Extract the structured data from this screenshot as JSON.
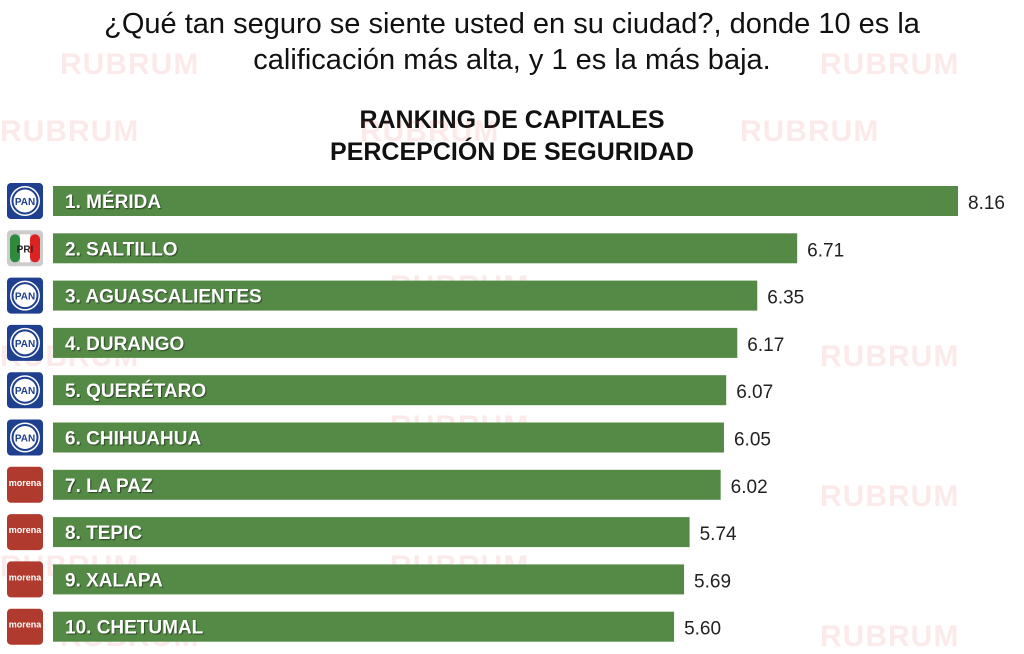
{
  "question": {
    "line1": "¿Qué tan seguro se siente usted en su ciudad?, donde 10 es la",
    "line2": "calificación más alta, y  1 es la más baja."
  },
  "watermark": "RUBRUM",
  "chart_data": {
    "type": "bar",
    "orientation": "horizontal",
    "title": "RANKING DE CAPITALES",
    "subtitle": "PERCEPCIÓN DE SEGURIDAD",
    "categories": [
      "1. MÉRIDA",
      "2. SALTILLO",
      "3. AGUASCALIENTES",
      "4. DURANGO",
      "5. QUERÉTARO",
      "6. CHIHUAHUA",
      "7. LA PAZ",
      "8. TEPIC",
      "9. XALAPA",
      "10. CHETUMAL"
    ],
    "values": [
      8.16,
      6.71,
      6.35,
      6.17,
      6.07,
      6.05,
      6.02,
      5.74,
      5.69,
      5.6
    ],
    "value_labels": [
      "8.16",
      "6.71",
      "6.35",
      "6.17",
      "6.07",
      "6.05",
      "6.02",
      "5.74",
      "5.69",
      "5.60"
    ],
    "parties": [
      "PAN",
      "PRI",
      "PAN",
      "PAN",
      "PAN",
      "PAN",
      "morena",
      "morena",
      "morena",
      "morena"
    ],
    "bar_color": "#548a46",
    "party_colors": {
      "PAN": "#1f3f8f",
      "PRI": "#c8c8c8",
      "morena": "#b03a2e"
    },
    "grid": false,
    "legend": "none"
  }
}
